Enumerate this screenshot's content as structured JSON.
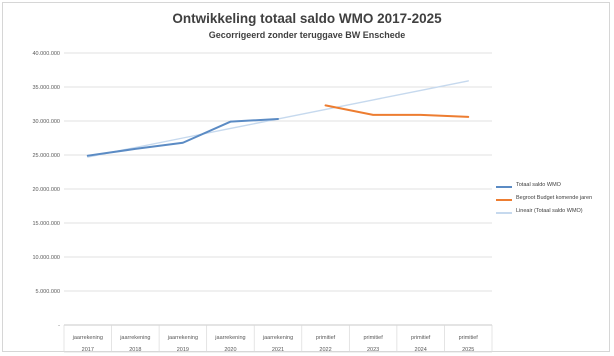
{
  "chart_data": {
    "type": "line",
    "title": "Ontwikkeling totaal saldo WMO 2017-2025",
    "subtitle": "Gecorrigeerd zonder teruggave BW Enschede",
    "categories": [
      [
        "jaarrekening",
        "2017"
      ],
      [
        "jaarrekening",
        "2018"
      ],
      [
        "jaarrekening",
        "2019"
      ],
      [
        "jaarrekening",
        "2020"
      ],
      [
        "jaarrekening",
        "2021"
      ],
      [
        "primitief",
        "2022"
      ],
      [
        "primitief",
        "2023"
      ],
      [
        "primitief",
        "2024"
      ],
      [
        "primitief",
        "2025"
      ]
    ],
    "yticks": [
      "-",
      "5.000.000",
      "10.000.000",
      "15.000.000",
      "20.000.000",
      "25.000.000",
      "30.000.000",
      "35.000.000",
      "40.000.000"
    ],
    "ylim": [
      0,
      40000000
    ],
    "grid": true,
    "legend_position": "right",
    "series": [
      {
        "name": "Totaal saldo WMO",
        "color": "#5b8bc4",
        "values": [
          24900000,
          25900000,
          26800000,
          29900000,
          30300000,
          null,
          null,
          null,
          null
        ]
      },
      {
        "name": "Begroot Budget komende jaren",
        "color": "#ed7d31",
        "values": [
          null,
          null,
          null,
          null,
          null,
          32300000,
          30900000,
          30900000,
          30600000
        ]
      },
      {
        "name": "Lineair (Totaal saldo WMO)",
        "color": "#c6d9ee",
        "values": [
          24700000,
          26100000,
          27500000,
          28900000,
          30300000,
          31700000,
          33100000,
          34500000,
          35900000
        ]
      }
    ]
  }
}
